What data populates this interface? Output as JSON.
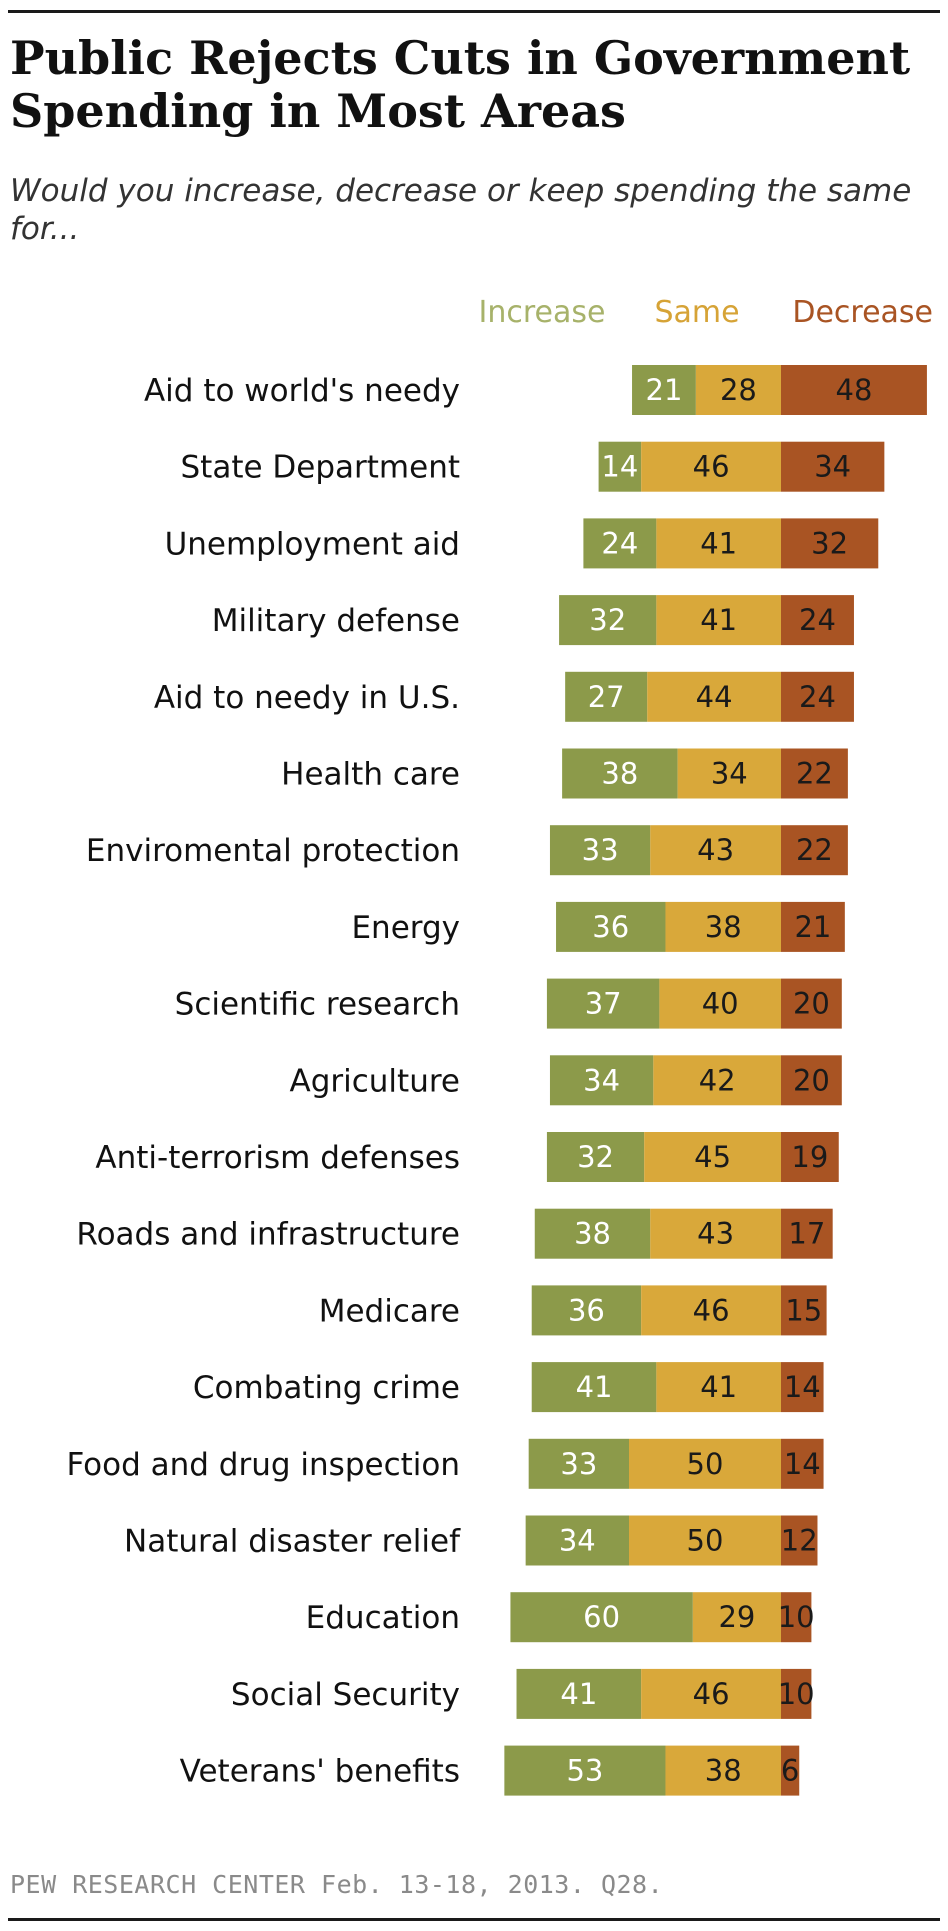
{
  "title": "Public Rejects Cuts in Government Spending in Most Areas",
  "subtitle": "Would you increase, decrease or keep spending the same for...",
  "source": "PEW RESEARCH  CENTER Feb. 13-18, 2013. Q28.",
  "colors": {
    "increase": "#8c9a4a",
    "same": "#d9a83a",
    "decrease": "#a95423",
    "increase_legend": "#a7b26a",
    "same_legend": "#d6a336",
    "decrease_legend": "#a95423"
  },
  "chart_data": {
    "type": "bar",
    "orientation": "horizontal",
    "stacked": "diverging",
    "title": "Public Rejects Cuts in Government Spending in Most Areas",
    "legend": [
      "Increase",
      "Same",
      "Decrease"
    ],
    "categories": [
      "Aid to world's needy",
      "State Department",
      "Unemployment aid",
      "Military defense",
      "Aid to needy in U.S.",
      "Health care",
      "Enviromental protection",
      "Energy",
      "Scientific research",
      "Agriculture",
      "Anti-terrorism defenses",
      "Roads and infrastructure",
      "Medicare",
      "Combating crime",
      "Food and drug inspection",
      "Natural disaster relief",
      "Education",
      "Social Security",
      "Veterans' benefits"
    ],
    "series": [
      {
        "name": "Increase",
        "values": [
          21,
          14,
          24,
          32,
          27,
          38,
          33,
          36,
          37,
          34,
          32,
          38,
          36,
          41,
          33,
          34,
          60,
          41,
          53
        ]
      },
      {
        "name": "Same",
        "values": [
          28,
          46,
          41,
          41,
          44,
          34,
          43,
          38,
          40,
          42,
          45,
          43,
          46,
          41,
          50,
          50,
          29,
          46,
          38
        ]
      },
      {
        "name": "Decrease",
        "values": [
          48,
          34,
          32,
          24,
          24,
          22,
          22,
          21,
          20,
          20,
          19,
          17,
          15,
          14,
          14,
          12,
          10,
          10,
          6
        ]
      }
    ]
  }
}
